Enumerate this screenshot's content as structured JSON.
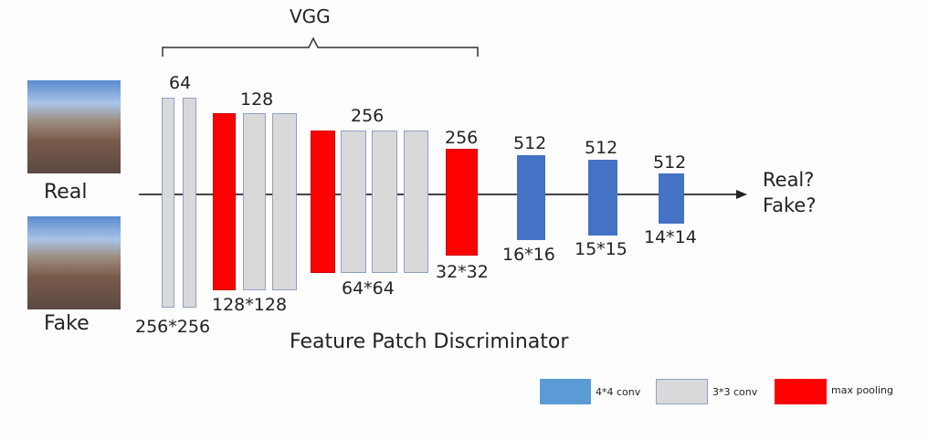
{
  "title": "VGG",
  "caption": "Feature Patch Discriminator",
  "inputs": {
    "real": "Real",
    "fake": "Fake"
  },
  "output": {
    "line1": "Real?",
    "line2": "Fake?"
  },
  "labels": {
    "c64": "64",
    "s256": "256*256",
    "c128": "128",
    "s128": "128*128",
    "c256a": "256",
    "s64": "64*64",
    "c256b": "256",
    "s32": "32*32",
    "c512a": "512",
    "s16": "16*16",
    "c512b": "512",
    "s15": "15*15",
    "c512c": "512",
    "s14": "14*14"
  },
  "legend": {
    "conv4": "4*4 conv",
    "conv3": "3*3 conv",
    "pool": "max pooling"
  },
  "colors": {
    "conv4": "#4472c4",
    "conv3": "#d9d9d9",
    "pool": "#ff0000"
  }
}
